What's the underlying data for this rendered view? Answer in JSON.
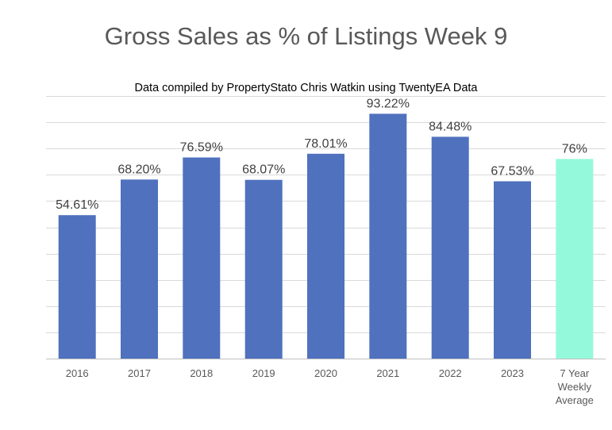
{
  "chart_data": {
    "type": "bar",
    "title": "Gross Sales as % of Listings Week 9",
    "subtitle": "Data compiled by PropertyStato Chris Watkin using TwentyEA Data",
    "categories": [
      [
        "2016"
      ],
      [
        "2017"
      ],
      [
        "2018"
      ],
      [
        "2019"
      ],
      [
        "2020"
      ],
      [
        "2021"
      ],
      [
        "2022"
      ],
      [
        "2023"
      ],
      [
        "7 Year",
        "Weekly",
        "Average"
      ]
    ],
    "values": [
      54.61,
      68.2,
      76.59,
      68.07,
      78.01,
      93.22,
      84.48,
      67.53,
      76
    ],
    "data_labels": [
      "54.61%",
      "68.20%",
      "76.59%",
      "68.07%",
      "78.01%",
      "93.22%",
      "84.48%",
      "67.53%",
      "76%"
    ],
    "colors": [
      "#4f71be",
      "#4f71be",
      "#4f71be",
      "#4f71be",
      "#4f71be",
      "#4f71be",
      "#4f71be",
      "#4f71be",
      "#94f9db"
    ],
    "ylim": [
      0,
      100
    ],
    "grid": true,
    "xlabel": "",
    "ylabel": ""
  }
}
